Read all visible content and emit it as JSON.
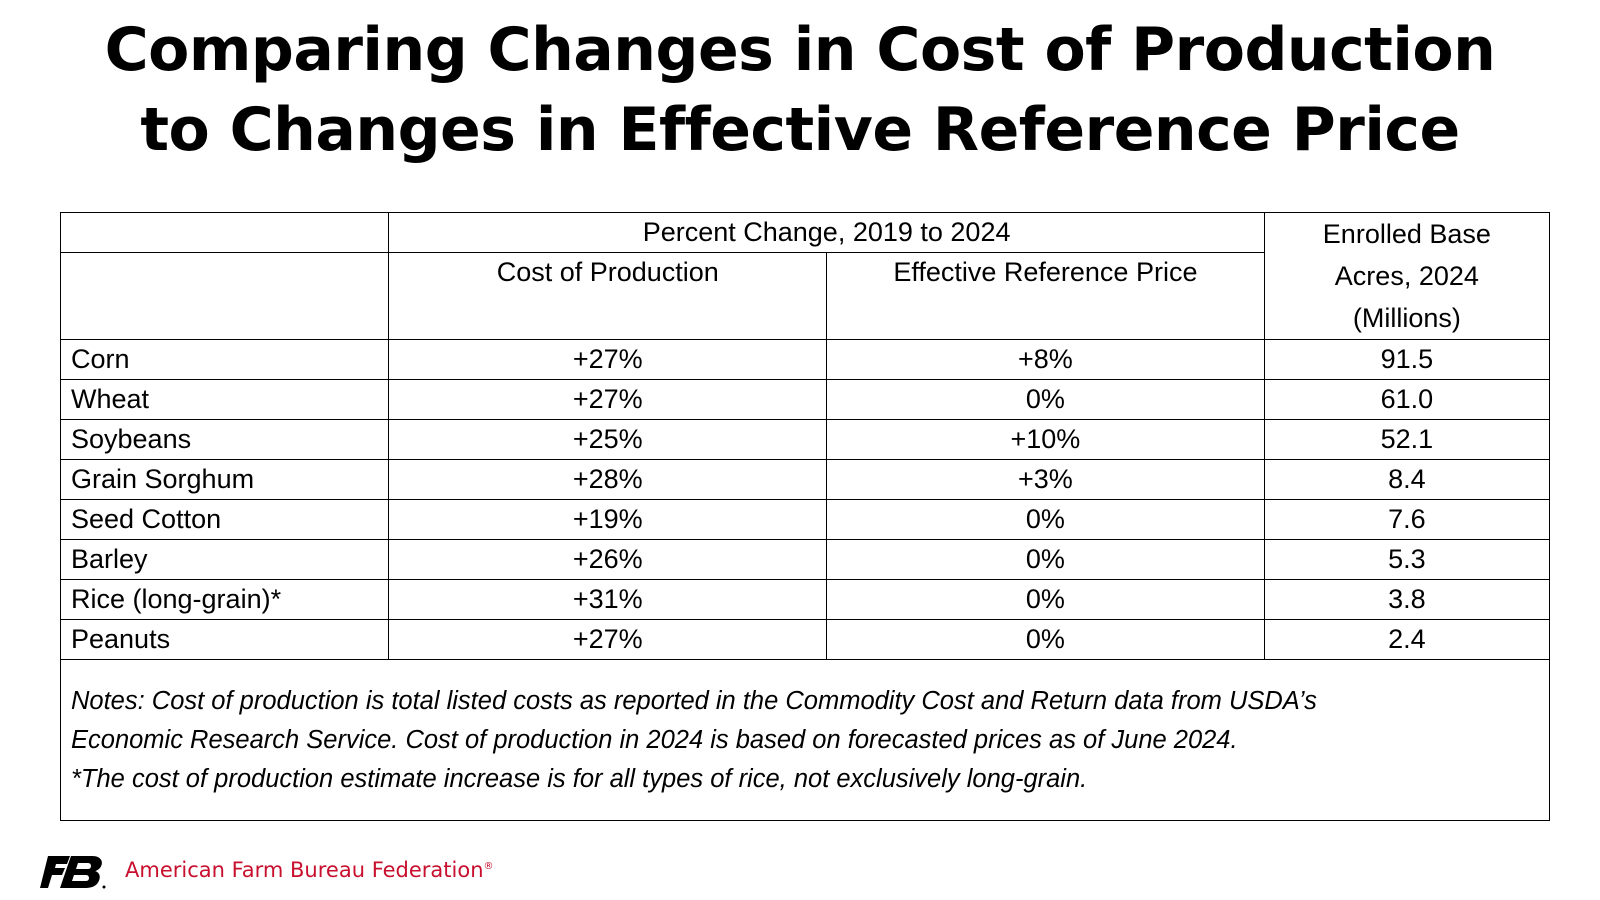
{
  "title": {
    "line1": "Comparing Changes in Cost of Production",
    "line2": "to Changes in Effective Reference Price"
  },
  "chart_data": {
    "type": "table",
    "group_header": "Percent Change, 2019 to 2024",
    "columns": {
      "cost_of_production": "Cost of Production",
      "effective_reference_price": "Effective Reference Price",
      "enrolled_base_acres": [
        "Enrolled Base",
        "Acres, 2024",
        "(Millions)"
      ]
    },
    "rows": [
      {
        "crop": "Corn",
        "cost_of_production": "+27%",
        "effective_reference_price": "+8%",
        "enrolled_base_acres": "91.5"
      },
      {
        "crop": "Wheat",
        "cost_of_production": "+27%",
        "effective_reference_price": "0%",
        "enrolled_base_acres": "61.0"
      },
      {
        "crop": "Soybeans",
        "cost_of_production": "+25%",
        "effective_reference_price": "+10%",
        "enrolled_base_acres": "52.1"
      },
      {
        "crop": "Grain Sorghum",
        "cost_of_production": "+28%",
        "effective_reference_price": "+3%",
        "enrolled_base_acres": "8.4"
      },
      {
        "crop": "Seed Cotton",
        "cost_of_production": "+19%",
        "effective_reference_price": "0%",
        "enrolled_base_acres": "7.6"
      },
      {
        "crop": "Barley",
        "cost_of_production": "+26%",
        "effective_reference_price": "0%",
        "enrolled_base_acres": "5.3"
      },
      {
        "crop": "Rice (long-grain)*",
        "cost_of_production": "+31%",
        "effective_reference_price": "0%",
        "enrolled_base_acres": "3.8"
      },
      {
        "crop": "Peanuts",
        "cost_of_production": "+27%",
        "effective_reference_price": "0%",
        "enrolled_base_acres": "2.4"
      }
    ],
    "notes": [
      "Notes: Cost of production is total listed costs as reported in the Commodity Cost and Return data from USDA’s",
      "Economic Research Service. Cost of production in 2024 is based on forecasted prices as of June 2024.",
      "*The cost of production estimate increase is for all types of rice, not exclusively long-grain."
    ]
  },
  "footer": {
    "organization": "American Farm Bureau Federation",
    "registered_mark": "®",
    "logo_icon": "afbf-logo-icon",
    "brand_color": "#c8102e"
  }
}
